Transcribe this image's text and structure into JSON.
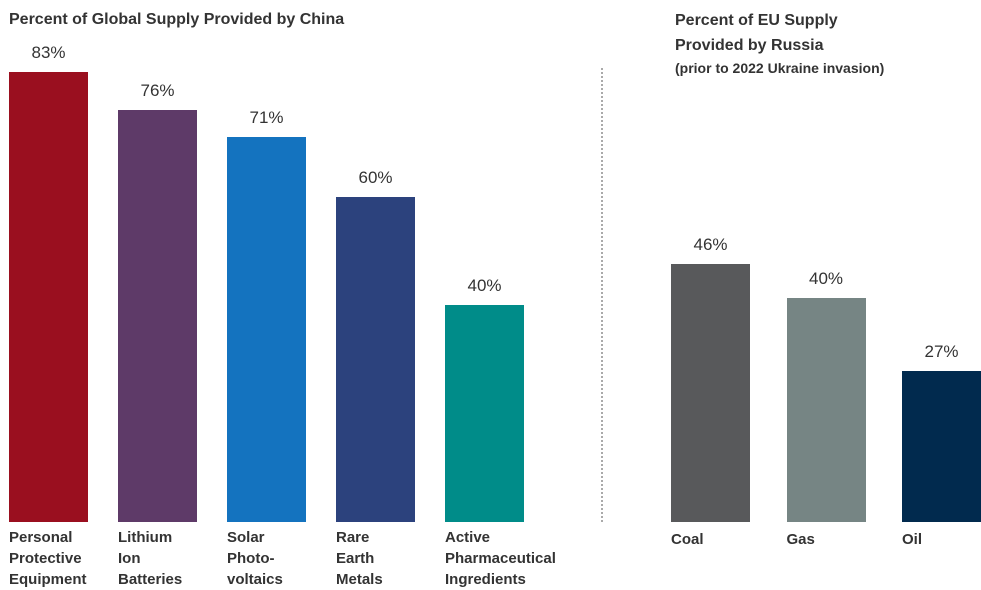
{
  "chart_data": [
    {
      "type": "bar",
      "title": "Percent of Global Supply Provided by China",
      "categories": [
        "Personal\nProtective\nEquipment",
        "Lithium\nIon\nBatteries",
        "Solar\nPhoto-\nvoltaics",
        "Rare\nEarth\nMetals",
        "Active\nPharmaceutical\nIngredients"
      ],
      "values": [
        83,
        76,
        71,
        60,
        40
      ],
      "value_labels": [
        "83%",
        "76%",
        "71%",
        "60%",
        "40%"
      ],
      "colors": [
        "#9a0f1f",
        "#5e3a68",
        "#1473bf",
        "#2c427d",
        "#008c89"
      ]
    },
    {
      "type": "bar",
      "title": "Percent of EU Supply\nProvided by Russia",
      "subtitle": "(prior to 2022 Ukraine invasion)",
      "categories": [
        "Coal",
        "Gas",
        "Oil"
      ],
      "values": [
        46,
        40,
        27
      ],
      "value_labels": [
        "46%",
        "40%",
        "27%"
      ],
      "colors": [
        "#58595b",
        "#768584",
        "#012a4e"
      ]
    }
  ]
}
